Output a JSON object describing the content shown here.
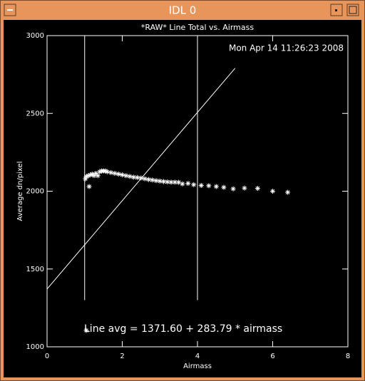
{
  "window": {
    "title": "IDL 0"
  },
  "chart_data": {
    "type": "scatter",
    "title": "*RAW* Line Total vs. Airmass",
    "x_label": "Airmass",
    "y_label": "Average dn/pixel",
    "annotations": [
      "Mon Apr 14 11:26:23 2008",
      "Line avg = 1371.60 + 283.79 * airmass"
    ],
    "xlim": [
      0,
      8
    ],
    "xticks": [
      0,
      2,
      4,
      6,
      8
    ],
    "ylim": [
      1000,
      3000
    ],
    "yticks": [
      1000,
      1500,
      2000,
      2500,
      3000
    ],
    "series": [
      {
        "color": "#ffffff",
        "x": [
          1.02,
          1.05,
          1.1,
          1.12,
          1.15,
          1.2,
          1.25,
          1.3,
          1.35,
          1.4,
          1.45,
          1.5,
          1.55,
          1.6,
          1.7,
          1.8,
          1.9,
          2.0,
          2.1,
          2.2,
          2.3,
          2.4,
          2.5,
          2.6,
          2.7,
          2.8,
          2.9,
          3.0,
          3.1,
          3.2,
          3.3,
          3.4,
          3.5,
          3.6,
          3.75,
          3.9,
          4.1,
          4.3,
          4.5,
          4.7,
          4.95,
          5.25,
          5.6,
          6.0,
          6.4
        ],
        "values": [
          2080,
          2095,
          2100,
          2030,
          2105,
          2110,
          2100,
          2115,
          2100,
          2125,
          2130,
          2130,
          2130,
          2125,
          2120,
          2115,
          2110,
          2105,
          2100,
          2095,
          2090,
          2088,
          2085,
          2080,
          2075,
          2072,
          2068,
          2065,
          2062,
          2060,
          2058,
          2058,
          2057,
          2047,
          2050,
          2042,
          2037,
          2035,
          2030,
          2025,
          2015,
          2020,
          2018,
          2000,
          1993
        ]
      }
    ],
    "fit_line": {
      "x": [
        0,
        5
      ],
      "values": [
        1371.6,
        2790.55
      ]
    },
    "vertical_lines": {
      "x": [
        1,
        4
      ],
      "y": [
        1300,
        3000
      ]
    }
  }
}
